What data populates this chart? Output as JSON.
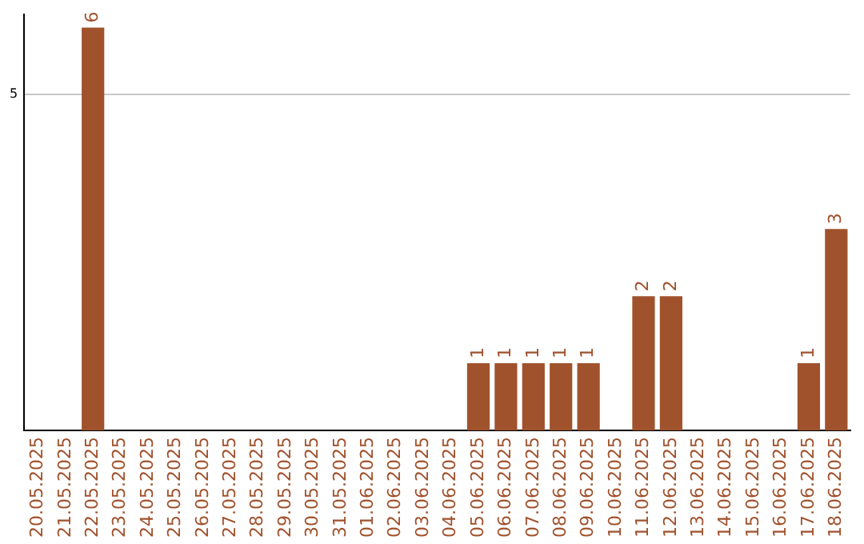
{
  "chart_data": {
    "type": "bar",
    "categories": [
      "20.05.2025",
      "21.05.2025",
      "22.05.2025",
      "23.05.2025",
      "24.05.2025",
      "25.05.2025",
      "26.05.2025",
      "27.05.2025",
      "28.05.2025",
      "29.05.2025",
      "30.05.2025",
      "31.05.2025",
      "01.06.2025",
      "02.06.2025",
      "03.06.2025",
      "04.06.2025",
      "05.06.2025",
      "06.06.2025",
      "07.06.2025",
      "08.06.2025",
      "09.06.2025",
      "10.06.2025",
      "11.06.2025",
      "12.06.2025",
      "13.06.2025",
      "14.06.2025",
      "15.06.2025",
      "16.06.2025",
      "17.06.2025",
      "18.06.2025"
    ],
    "values": [
      0,
      0,
      6,
      0,
      0,
      0,
      0,
      0,
      0,
      0,
      0,
      0,
      0,
      0,
      0,
      0,
      1,
      1,
      1,
      1,
      1,
      0,
      2,
      2,
      0,
      0,
      0,
      0,
      1,
      3
    ],
    "value_labels": [
      null,
      null,
      "6",
      null,
      null,
      null,
      null,
      null,
      null,
      null,
      null,
      null,
      null,
      null,
      null,
      null,
      "1",
      "1",
      "1",
      "1",
      "1",
      null,
      "2",
      "2",
      null,
      null,
      null,
      null,
      "1",
      "3"
    ],
    "color": "#a0522d",
    "ylim": [
      0,
      6.2
    ],
    "yticks": [
      5
    ],
    "grid": "y"
  }
}
